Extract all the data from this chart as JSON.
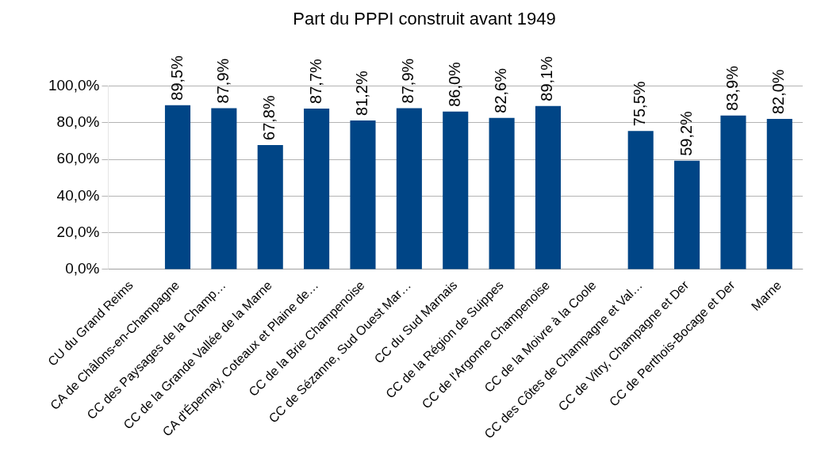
{
  "chart_data": {
    "type": "bar",
    "title": "Part du PPPI construit avant 1949",
    "categories": [
      "CU du Grand Reims",
      "CA de Châlons-en-Champagne",
      "CC des Paysages de la Champ…",
      "CC de la Grande Vallée de la Marne",
      "CA d'Épernay, Coteaux et Plaine de…",
      "CC de la Brie Champenoise",
      "CC de Sézanne, Sud Ouest Mar…",
      "CC du Sud Marnais",
      "CC de la Région de Suippes",
      "CC de l'Argonne Champenoise",
      "CC de la Moivre à la Coole",
      "CC des Côtes de Champagne et Val…",
      "CC de Vitry, Champagne et Der",
      "CC de Perthois-Bocage et Der",
      "Marne"
    ],
    "values": [
      null,
      89.5,
      87.9,
      67.8,
      87.7,
      81.2,
      87.9,
      86.0,
      82.6,
      89.1,
      null,
      75.5,
      59.2,
      83.9,
      82.0
    ],
    "value_labels": [
      null,
      "89,5%",
      "87,9%",
      "67,8%",
      "87,7%",
      "81,2%",
      "87,9%",
      "86,0%",
      "82,6%",
      "89,1%",
      null,
      "75,5%",
      "59,2%",
      "83,9%",
      "82,0%"
    ],
    "color": "#004586",
    "ylim": [
      0,
      100
    ],
    "yticks": [
      {
        "value": 0,
        "label": "0,0%"
      },
      {
        "value": 20,
        "label": "20,0%"
      },
      {
        "value": 40,
        "label": "40,0%"
      },
      {
        "value": 60,
        "label": "60,0%"
      },
      {
        "value": 80,
        "label": "80,0%"
      },
      {
        "value": 100,
        "label": "100,0%"
      }
    ],
    "grid": "y",
    "legend": false
  }
}
